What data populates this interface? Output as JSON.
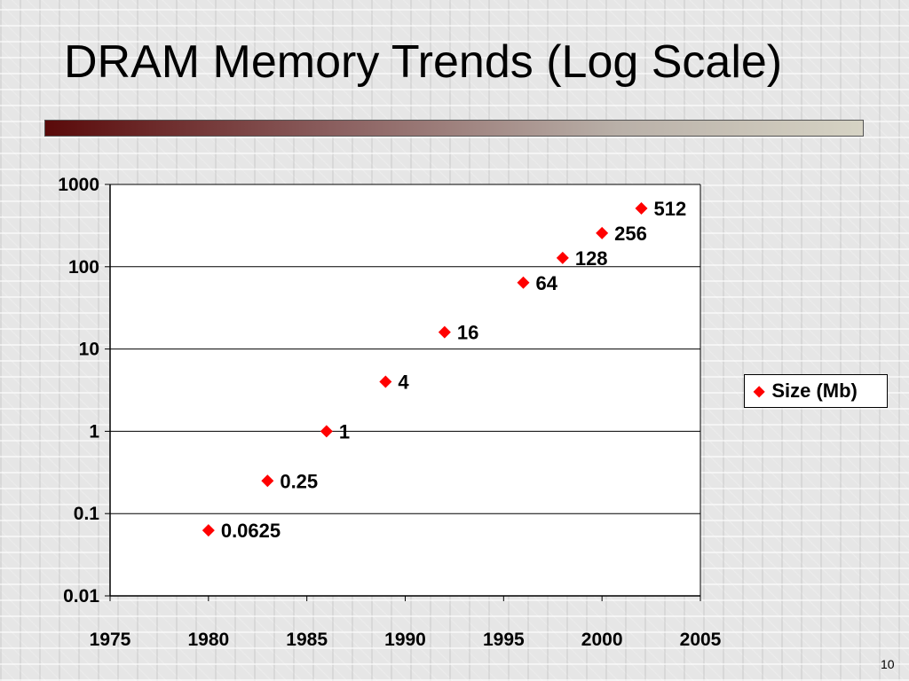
{
  "slide": {
    "title": "DRAM Memory Trends (Log Scale)",
    "number": "10",
    "accent_bar_colors": [
      "#5a0a0a",
      "#d6d3c4"
    ]
  },
  "chart_data": {
    "type": "scatter",
    "title": "",
    "xlabel": "",
    "ylabel": "",
    "y_scale": "log",
    "xlim": [
      1975,
      2005
    ],
    "ylim": [
      0.01,
      1000
    ],
    "x_ticks": [
      "1975",
      "1980",
      "1985",
      "1990",
      "1995",
      "2000",
      "2005"
    ],
    "y_ticks": [
      "0.01",
      "0.1",
      "1",
      "10",
      "100",
      "1000"
    ],
    "grid": "horizontal",
    "legend_position": "right",
    "marker_color": "#ff0000",
    "series": [
      {
        "name": "Size (Mb)",
        "points": [
          {
            "x": 1980,
            "y": 0.0625,
            "label": "0.0625"
          },
          {
            "x": 1983,
            "y": 0.25,
            "label": "0.25"
          },
          {
            "x": 1986,
            "y": 1,
            "label": "1"
          },
          {
            "x": 1989,
            "y": 4,
            "label": "4"
          },
          {
            "x": 1992,
            "y": 16,
            "label": "16"
          },
          {
            "x": 1996,
            "y": 64,
            "label": "64"
          },
          {
            "x": 1998,
            "y": 128,
            "label": "128"
          },
          {
            "x": 2000,
            "y": 256,
            "label": "256"
          },
          {
            "x": 2002,
            "y": 512,
            "label": "512"
          }
        ]
      }
    ]
  }
}
